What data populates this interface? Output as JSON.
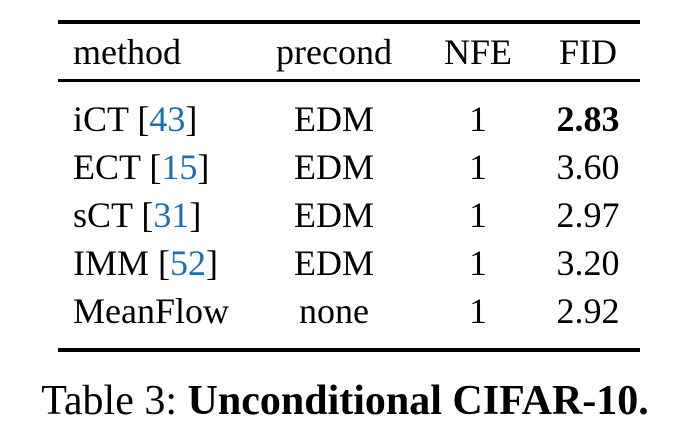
{
  "table": {
    "headers": {
      "method": "method",
      "precond": "precond",
      "nfe": "NFE",
      "fid": "FID"
    },
    "rows": [
      {
        "method_prefix": "iCT [",
        "cite": "43",
        "method_suffix": "]",
        "precond": "EDM",
        "nfe": "1",
        "fid": "2.83",
        "fid_bold": true
      },
      {
        "method_prefix": "ECT [",
        "cite": "15",
        "method_suffix": "]",
        "precond": "EDM",
        "nfe": "1",
        "fid": "3.60",
        "fid_bold": false
      },
      {
        "method_prefix": "sCT [",
        "cite": "31",
        "method_suffix": "]",
        "precond": "EDM",
        "nfe": "1",
        "fid": "2.97",
        "fid_bold": false
      },
      {
        "method_prefix": "IMM [",
        "cite": "52",
        "method_suffix": "]",
        "precond": "EDM",
        "nfe": "1",
        "fid": "3.20",
        "fid_bold": false
      },
      {
        "method_prefix": "MeanFlow",
        "cite": "",
        "method_suffix": "",
        "precond": "none",
        "nfe": "1",
        "fid": "2.92",
        "fid_bold": false
      }
    ]
  },
  "caption": {
    "prefix": "Table 3: ",
    "bold": "Unconditional CIFAR-10."
  },
  "colors": {
    "citation_blue": "#1a6fb5",
    "text_black": "#000000",
    "rule_black": "#000000",
    "background": "#ffffff"
  }
}
